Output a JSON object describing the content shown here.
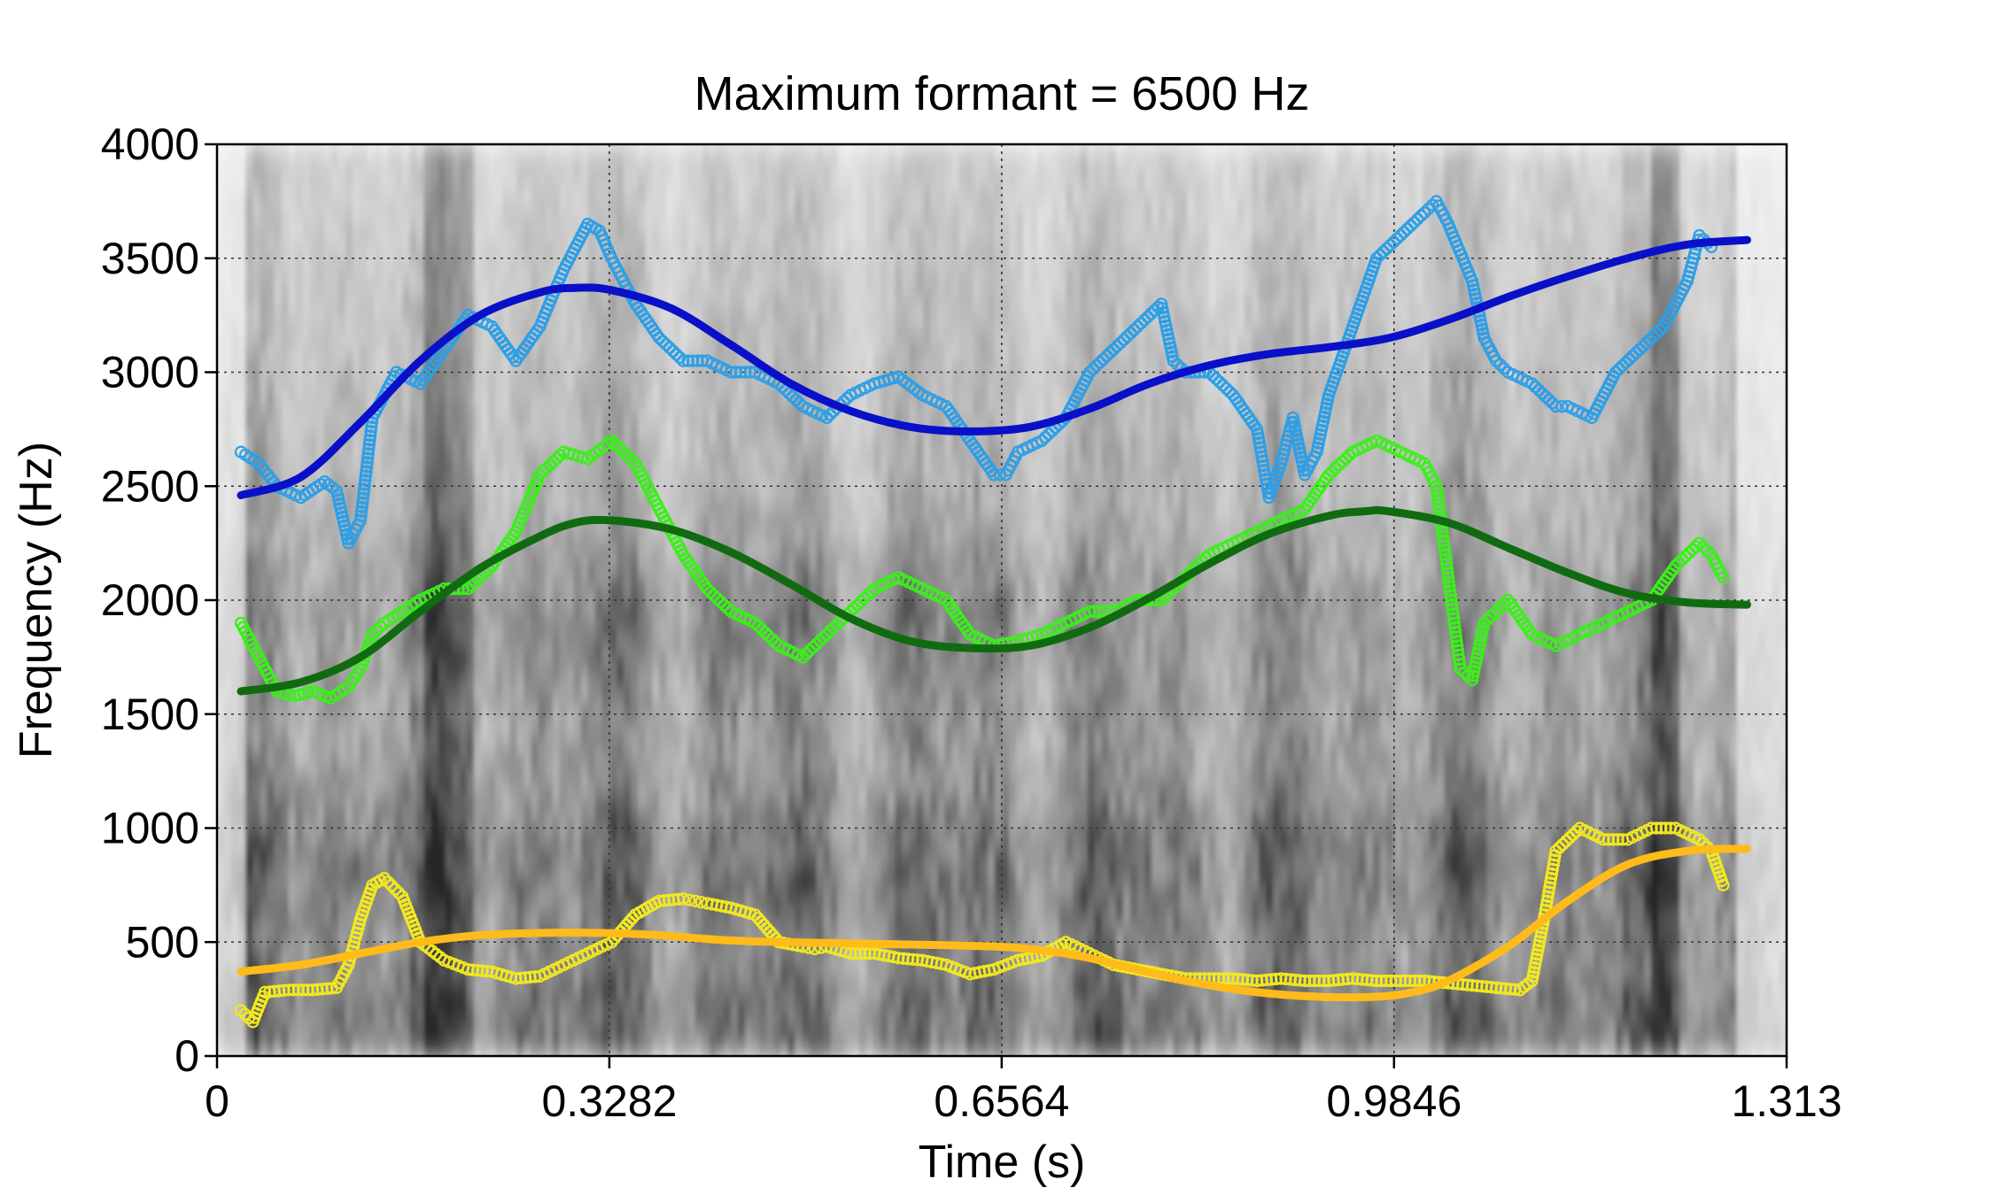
{
  "chart_data": {
    "type": "scatter",
    "title": "Maximum formant = 6500 Hz",
    "xlabel": "Time (s)",
    "ylabel": "Frequency (Hz)",
    "xlim": [
      0,
      1.313
    ],
    "ylim": [
      0,
      4000
    ],
    "x_ticks": [
      "0",
      "0.3282",
      "0.6564",
      "0.9846",
      "1.313"
    ],
    "x_tick_values": [
      0,
      0.3282,
      0.6564,
      0.9846,
      1.313
    ],
    "y_ticks": [
      "0",
      "500",
      "1000",
      "1500",
      "2000",
      "2500",
      "3000",
      "3500",
      "4000"
    ],
    "y_tick_values": [
      0,
      500,
      1000,
      1500,
      2000,
      2500,
      3000,
      3500,
      4000
    ],
    "grid": true,
    "background": "grayscale spectrogram",
    "series": [
      {
        "kind": "points",
        "color": "#2E9FE6",
        "x": [
          0.02,
          0.035,
          0.05,
          0.07,
          0.09,
          0.1,
          0.11,
          0.12,
          0.13,
          0.15,
          0.17,
          0.19,
          0.21,
          0.23,
          0.25,
          0.27,
          0.29,
          0.31,
          0.32,
          0.33,
          0.34,
          0.35,
          0.37,
          0.39,
          0.41,
          0.43,
          0.45,
          0.47,
          0.49,
          0.51,
          0.53,
          0.55,
          0.57,
          0.59,
          0.61,
          0.63,
          0.65,
          0.66,
          0.67,
          0.69,
          0.71,
          0.73,
          0.75,
          0.77,
          0.79,
          0.8,
          0.81,
          0.83,
          0.85,
          0.87,
          0.88,
          0.89,
          0.9,
          0.91,
          0.92,
          0.93,
          0.95,
          0.97,
          0.99,
          1.01,
          1.02,
          1.03,
          1.05,
          1.06,
          1.07,
          1.08,
          1.1,
          1.12,
          1.13,
          1.15,
          1.17,
          1.19,
          1.21,
          1.23,
          1.24,
          1.25
        ],
        "y": [
          2650,
          2600,
          2500,
          2450,
          2520,
          2480,
          2250,
          2350,
          2800,
          3000,
          2950,
          3100,
          3250,
          3200,
          3050,
          3200,
          3450,
          3650,
          3620,
          3500,
          3400,
          3300,
          3150,
          3050,
          3050,
          3000,
          3000,
          2950,
          2850,
          2800,
          2900,
          2950,
          2980,
          2900,
          2850,
          2700,
          2550,
          2550,
          2650,
          2700,
          2800,
          3000,
          3100,
          3200,
          3300,
          3050,
          3000,
          3000,
          2900,
          2750,
          2450,
          2600,
          2800,
          2550,
          2650,
          2900,
          3200,
          3500,
          3600,
          3700,
          3750,
          3650,
          3400,
          3150,
          3050,
          3000,
          2950,
          2850,
          2850,
          2800,
          3000,
          3100,
          3200,
          3400,
          3600,
          3550
        ]
      },
      {
        "kind": "points",
        "color": "#3BEF1A",
        "x": [
          0.02,
          0.035,
          0.05,
          0.065,
          0.08,
          0.095,
          0.11,
          0.12,
          0.13,
          0.14,
          0.155,
          0.17,
          0.19,
          0.21,
          0.23,
          0.25,
          0.27,
          0.29,
          0.31,
          0.33,
          0.35,
          0.37,
          0.39,
          0.41,
          0.43,
          0.45,
          0.47,
          0.49,
          0.51,
          0.53,
          0.55,
          0.57,
          0.59,
          0.61,
          0.63,
          0.65,
          0.67,
          0.69,
          0.71,
          0.73,
          0.75,
          0.77,
          0.79,
          0.81,
          0.83,
          0.85,
          0.87,
          0.89,
          0.91,
          0.93,
          0.95,
          0.97,
          0.99,
          1.01,
          1.02,
          1.03,
          1.04,
          1.05,
          1.06,
          1.08,
          1.1,
          1.12,
          1.14,
          1.16,
          1.18,
          1.2,
          1.22,
          1.24,
          1.25,
          1.26
        ],
        "y": [
          1900,
          1750,
          1600,
          1580,
          1600,
          1570,
          1620,
          1700,
          1850,
          1900,
          1950,
          2000,
          2050,
          2050,
          2150,
          2300,
          2550,
          2650,
          2620,
          2700,
          2600,
          2400,
          2200,
          2050,
          1950,
          1900,
          1800,
          1750,
          1850,
          1950,
          2050,
          2100,
          2050,
          2000,
          1850,
          1800,
          1820,
          1850,
          1900,
          1950,
          1950,
          2000,
          2000,
          2100,
          2200,
          2250,
          2300,
          2350,
          2400,
          2550,
          2650,
          2700,
          2650,
          2600,
          2500,
          2100,
          1700,
          1650,
          1900,
          2000,
          1850,
          1800,
          1850,
          1900,
          1950,
          2000,
          2150,
          2250,
          2200,
          2100
        ]
      },
      {
        "kind": "points",
        "color": "#F2E820",
        "x": [
          0.02,
          0.03,
          0.04,
          0.06,
          0.08,
          0.1,
          0.11,
          0.12,
          0.13,
          0.14,
          0.155,
          0.17,
          0.19,
          0.21,
          0.23,
          0.25,
          0.27,
          0.29,
          0.31,
          0.33,
          0.35,
          0.37,
          0.39,
          0.4,
          0.41,
          0.43,
          0.45,
          0.47,
          0.49,
          0.5,
          0.51,
          0.53,
          0.55,
          0.57,
          0.59,
          0.61,
          0.63,
          0.65,
          0.67,
          0.69,
          0.71,
          0.73,
          0.75,
          0.77,
          0.79,
          0.81,
          0.83,
          0.85,
          0.87,
          0.89,
          0.91,
          0.93,
          0.95,
          0.97,
          0.99,
          1.01,
          1.03,
          1.05,
          1.07,
          1.09,
          1.1,
          1.11,
          1.12,
          1.14,
          1.16,
          1.18,
          1.2,
          1.22,
          1.24,
          1.25,
          1.26
        ],
        "y": [
          200,
          150,
          280,
          290,
          290,
          300,
          400,
          600,
          750,
          780,
          700,
          500,
          420,
          380,
          370,
          340,
          350,
          400,
          450,
          500,
          620,
          680,
          690,
          680,
          670,
          650,
          620,
          500,
          480,
          470,
          480,
          450,
          450,
          430,
          420,
          400,
          360,
          380,
          420,
          440,
          500,
          450,
          400,
          380,
          360,
          340,
          340,
          340,
          330,
          340,
          330,
          330,
          340,
          330,
          330,
          330,
          320,
          310,
          300,
          290,
          330,
          600,
          900,
          1000,
          950,
          950,
          1000,
          1000,
          950,
          900,
          750
        ]
      },
      {
        "kind": "line",
        "color": "#0A10C8",
        "x": [
          0.02,
          0.07,
          0.12,
          0.17,
          0.22,
          0.27,
          0.3,
          0.33,
          0.38,
          0.43,
          0.48,
          0.53,
          0.58,
          0.63,
          0.68,
          0.73,
          0.78,
          0.83,
          0.88,
          0.93,
          0.98,
          1.03,
          1.08,
          1.13,
          1.18,
          1.23,
          1.28
        ],
        "y": [
          2460,
          2540,
          2780,
          3050,
          3250,
          3350,
          3370,
          3360,
          3280,
          3120,
          2950,
          2830,
          2760,
          2740,
          2760,
          2840,
          2950,
          3030,
          3080,
          3110,
          3150,
          3230,
          3330,
          3420,
          3500,
          3560,
          3580
        ]
      },
      {
        "kind": "line",
        "color": "#106B10",
        "x": [
          0.02,
          0.07,
          0.12,
          0.17,
          0.22,
          0.27,
          0.3,
          0.33,
          0.38,
          0.43,
          0.48,
          0.53,
          0.58,
          0.63,
          0.68,
          0.73,
          0.78,
          0.83,
          0.88,
          0.93,
          0.96,
          0.98,
          1.03,
          1.08,
          1.13,
          1.18,
          1.23,
          1.28
        ],
        "y": [
          1600,
          1640,
          1750,
          1950,
          2140,
          2280,
          2340,
          2350,
          2310,
          2210,
          2070,
          1920,
          1820,
          1790,
          1800,
          1880,
          2010,
          2160,
          2290,
          2370,
          2390,
          2390,
          2340,
          2230,
          2120,
          2030,
          1990,
          1980
        ]
      },
      {
        "kind": "line",
        "color": "#FFBB1A",
        "x": [
          0.02,
          0.07,
          0.12,
          0.17,
          0.22,
          0.27,
          0.32,
          0.37,
          0.42,
          0.47,
          0.52,
          0.57,
          0.62,
          0.67,
          0.72,
          0.77,
          0.82,
          0.87,
          0.92,
          0.97,
          1.0,
          1.03,
          1.08,
          1.13,
          1.18,
          1.23,
          1.28
        ],
        "y": [
          370,
          400,
          450,
          500,
          530,
          540,
          540,
          530,
          510,
          500,
          495,
          490,
          485,
          475,
          440,
          380,
          320,
          280,
          260,
          260,
          280,
          330,
          480,
          680,
          840,
          900,
          910
        ]
      }
    ]
  }
}
